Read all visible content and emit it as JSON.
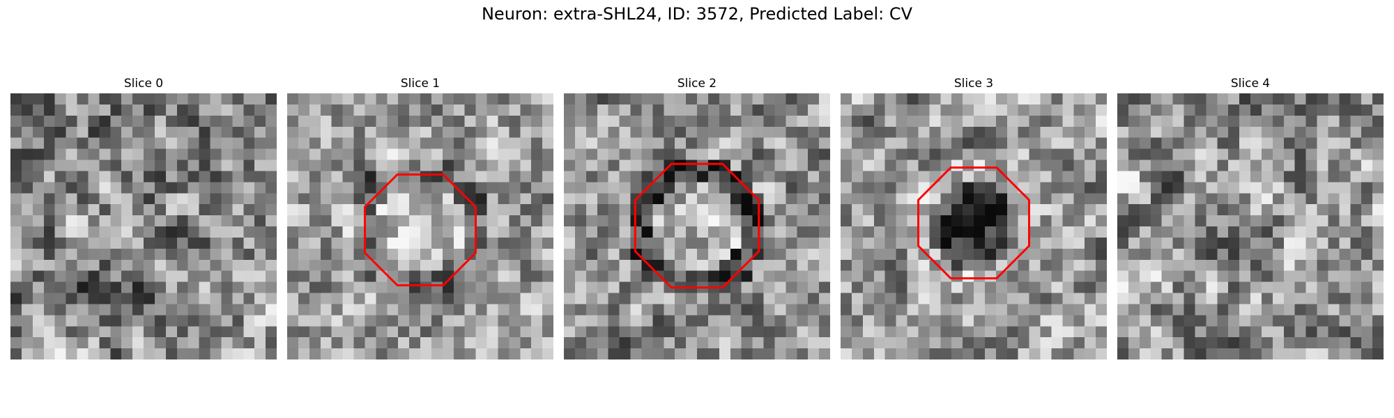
{
  "figure": {
    "title": "Neuron: extra-SHL24, ID: 3572, Predicted Label: CV"
  },
  "overlay_color": "#ff0000",
  "slices": [
    {
      "title": "Slice 0",
      "has_contour": false,
      "seed": 11,
      "mean": 0.52,
      "contrast": 0.55,
      "blob": 0.0,
      "ring": 0.0
    },
    {
      "title": "Slice 1",
      "has_contour": true,
      "seed": 23,
      "mean": 0.62,
      "contrast": 0.5,
      "blob": 0.15,
      "ring": -0.15
    },
    {
      "title": "Slice 2",
      "has_contour": true,
      "seed": 37,
      "mean": 0.58,
      "contrast": 0.5,
      "blob": 0.1,
      "ring": -0.35
    },
    {
      "title": "Slice 3",
      "has_contour": true,
      "seed": 41,
      "mean": 0.6,
      "contrast": 0.5,
      "blob": -0.35,
      "ring": 0.1
    },
    {
      "title": "Slice 4",
      "has_contour": false,
      "seed": 53,
      "mean": 0.58,
      "contrast": 0.55,
      "blob": 0.0,
      "ring": 0.0
    }
  ]
}
